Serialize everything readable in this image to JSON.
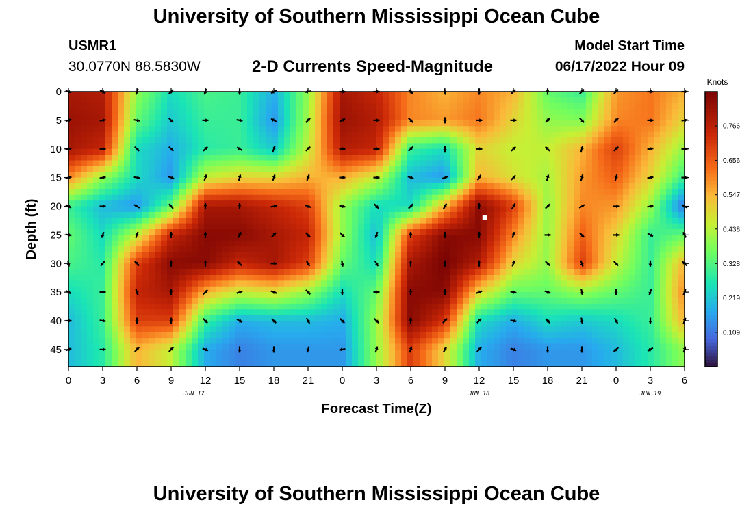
{
  "header": {
    "title": "University of Southern Mississippi Ocean Cube",
    "station_id": "USMR1",
    "station_coords": "30.0770N  88.5830W",
    "plot_title": "2-D Currents Speed-Magnitude",
    "model_label": "Model Start Time",
    "model_time": "06/17/2022 Hour 09"
  },
  "footer": {
    "title": "University of Southern Mississippi Ocean Cube"
  },
  "chart_data": {
    "type": "heatmap",
    "title": "2-D Currents Speed-Magnitude",
    "xlabel": "Forecast Time(Z)",
    "ylabel": "Depth (ft)",
    "x_tick_labels": [
      "0",
      "3",
      "6",
      "9",
      "12",
      "15",
      "18",
      "21",
      "0",
      "3",
      "6",
      "9",
      "12",
      "15",
      "18",
      "21",
      "0",
      "3",
      "6"
    ],
    "x_hours": [
      0,
      3,
      6,
      9,
      12,
      15,
      18,
      21,
      24,
      27,
      30,
      33,
      36,
      39,
      42,
      45,
      48,
      51,
      54
    ],
    "date_labels": [
      {
        "label": "JUN 17",
        "hour": 11
      },
      {
        "label": "JUN 18",
        "hour": 36
      },
      {
        "label": "JUN 19",
        "hour": 51
      }
    ],
    "xlim": [
      0,
      54
    ],
    "y_ticks": [
      0,
      5,
      10,
      15,
      20,
      25,
      30,
      35,
      40,
      45
    ],
    "ylim": [
      0,
      48
    ],
    "colorbar": {
      "label": "Knots",
      "ticks": [
        "0.766",
        "0.656",
        "0.547",
        "0.438",
        "0.328",
        "0.219",
        "0.109"
      ],
      "tick_values": [
        0.766,
        0.656,
        0.547,
        0.438,
        0.328,
        0.219,
        0.109
      ],
      "range": [
        0.0,
        0.875
      ]
    },
    "column_hours": [
      0,
      3,
      6,
      9,
      12,
      15,
      18,
      21,
      24,
      27,
      30,
      33,
      36,
      39,
      42,
      45,
      48,
      51,
      54
    ],
    "row_depths": [
      0,
      5,
      10,
      15,
      20,
      25,
      30,
      35,
      40,
      45
    ],
    "speed_grid": [
      [
        0.8,
        0.78,
        0.4,
        0.25,
        0.32,
        0.3,
        0.18,
        0.4,
        0.8,
        0.75,
        0.6,
        0.55,
        0.6,
        0.55,
        0.35,
        0.3,
        0.58,
        0.62,
        0.55
      ],
      [
        0.82,
        0.8,
        0.35,
        0.22,
        0.3,
        0.3,
        0.15,
        0.42,
        0.82,
        0.78,
        0.6,
        0.58,
        0.62,
        0.5,
        0.4,
        0.38,
        0.6,
        0.62,
        0.5
      ],
      [
        0.8,
        0.75,
        0.25,
        0.18,
        0.28,
        0.3,
        0.22,
        0.45,
        0.78,
        0.75,
        0.3,
        0.25,
        0.5,
        0.45,
        0.45,
        0.55,
        0.7,
        0.55,
        0.4
      ],
      [
        0.6,
        0.4,
        0.25,
        0.15,
        0.45,
        0.5,
        0.5,
        0.55,
        0.55,
        0.45,
        0.2,
        0.15,
        0.55,
        0.48,
        0.42,
        0.58,
        0.65,
        0.5,
        0.3
      ],
      [
        0.3,
        0.2,
        0.15,
        0.35,
        0.8,
        0.8,
        0.75,
        0.7,
        0.4,
        0.25,
        0.25,
        0.55,
        0.85,
        0.7,
        0.4,
        0.6,
        0.58,
        0.4,
        0.1
      ],
      [
        0.35,
        0.25,
        0.45,
        0.75,
        0.85,
        0.85,
        0.8,
        0.75,
        0.4,
        0.2,
        0.7,
        0.85,
        0.85,
        0.6,
        0.4,
        0.65,
        0.5,
        0.3,
        0.35
      ],
      [
        0.32,
        0.28,
        0.7,
        0.85,
        0.85,
        0.75,
        0.8,
        0.7,
        0.35,
        0.25,
        0.8,
        0.88,
        0.78,
        0.5,
        0.4,
        0.7,
        0.45,
        0.3,
        0.55
      ],
      [
        0.25,
        0.3,
        0.75,
        0.8,
        0.55,
        0.45,
        0.48,
        0.4,
        0.25,
        0.35,
        0.85,
        0.85,
        0.5,
        0.35,
        0.35,
        0.4,
        0.35,
        0.3,
        0.6
      ],
      [
        0.2,
        0.3,
        0.7,
        0.7,
        0.3,
        0.18,
        0.2,
        0.2,
        0.18,
        0.4,
        0.85,
        0.72,
        0.25,
        0.18,
        0.25,
        0.22,
        0.25,
        0.3,
        0.55
      ],
      [
        0.2,
        0.28,
        0.55,
        0.45,
        0.18,
        0.12,
        0.15,
        0.15,
        0.15,
        0.4,
        0.7,
        0.5,
        0.18,
        0.12,
        0.15,
        0.15,
        0.2,
        0.28,
        0.4
      ]
    ],
    "vector_dir_deg": [
      [
        110,
        120,
        200,
        225,
        200,
        180,
        240,
        260,
        90,
        90,
        135,
        170,
        180,
        45,
        0,
        45,
        45,
        90,
        90
      ],
      [
        70,
        80,
        100,
        135,
        90,
        100,
        300,
        45,
        60,
        90,
        135,
        180,
        90,
        90,
        45,
        135,
        45,
        90,
        80
      ],
      [
        80,
        90,
        135,
        135,
        45,
        300,
        20,
        45,
        90,
        90,
        45,
        180,
        90,
        45,
        315,
        15,
        45,
        80,
        90
      ],
      [
        80,
        80,
        100,
        110,
        20,
        15,
        20,
        20,
        90,
        90,
        110,
        70,
        30,
        45,
        15,
        15,
        15,
        80,
        90
      ],
      [
        120,
        90,
        300,
        320,
        0,
        0,
        80,
        110,
        100,
        135,
        45,
        30,
        0,
        30,
        45,
        60,
        90,
        80,
        300
      ],
      [
        100,
        200,
        20,
        0,
        0,
        30,
        45,
        135,
        135,
        200,
        0,
        0,
        0,
        20,
        90,
        135,
        90,
        120,
        330
      ],
      [
        170,
        220,
        315,
        0,
        0,
        315,
        90,
        150,
        170,
        150,
        0,
        0,
        0,
        20,
        135,
        160,
        135,
        180,
        315
      ],
      [
        120,
        90,
        160,
        0,
        45,
        70,
        110,
        135,
        180,
        90,
        0,
        0,
        70,
        100,
        110,
        170,
        180,
        200,
        20
      ],
      [
        90,
        100,
        0,
        0,
        135,
        120,
        135,
        150,
        135,
        135,
        0,
        45,
        45,
        100,
        135,
        170,
        150,
        180,
        20
      ],
      [
        70,
        90,
        45,
        45,
        110,
        180,
        180,
        200,
        260,
        20,
        20,
        30,
        45,
        110,
        180,
        180,
        230,
        240,
        20
      ]
    ],
    "marker": {
      "hour": 36.5,
      "depth": 22
    }
  },
  "colors": {
    "speed_low": "#30123b",
    "speed_mid": "#a4fc3c",
    "speed_high": "#7a0403",
    "arrow": "#000000",
    "marker": "#ffffff"
  }
}
